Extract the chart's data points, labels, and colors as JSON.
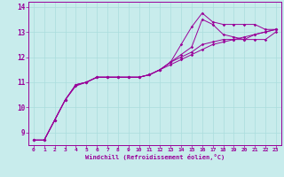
{
  "xlabel": "Windchill (Refroidissement éolien,°C)",
  "bg_color": "#c8ecec",
  "line_color": "#990099",
  "grid_color": "#aadddd",
  "xlim": [
    -0.5,
    23.5
  ],
  "ylim": [
    8.5,
    14.2
  ],
  "xticks": [
    0,
    1,
    2,
    3,
    4,
    5,
    6,
    7,
    8,
    9,
    10,
    11,
    12,
    13,
    14,
    15,
    16,
    17,
    18,
    19,
    20,
    21,
    22,
    23
  ],
  "yticks": [
    9,
    10,
    11,
    12,
    13,
    14
  ],
  "series": [
    {
      "x": [
        0,
        1,
        2,
        3,
        4,
        5,
        6,
        7,
        8,
        9,
        10,
        11,
        12,
        13,
        14,
        15,
        16,
        17,
        18,
        19,
        20,
        21,
        22,
        23
      ],
      "y": [
        8.7,
        8.7,
        9.5,
        10.3,
        10.9,
        11.0,
        11.2,
        11.2,
        11.2,
        11.2,
        11.2,
        11.3,
        11.5,
        11.8,
        12.5,
        13.2,
        13.75,
        13.4,
        13.3,
        13.3,
        13.3,
        13.3,
        13.1,
        13.1
      ]
    },
    {
      "x": [
        0,
        1,
        2,
        3,
        4,
        5,
        6,
        7,
        8,
        9,
        10,
        11,
        12,
        13,
        14,
        15,
        16,
        17,
        18,
        19,
        20,
        21,
        22,
        23
      ],
      "y": [
        8.7,
        8.7,
        9.5,
        10.3,
        10.85,
        11.0,
        11.2,
        11.2,
        11.2,
        11.2,
        11.2,
        11.3,
        11.5,
        11.8,
        12.1,
        12.4,
        13.5,
        13.3,
        12.9,
        12.8,
        12.7,
        12.7,
        12.7,
        13.0
      ]
    },
    {
      "x": [
        0,
        1,
        2,
        3,
        4,
        5,
        6,
        7,
        8,
        9,
        10,
        11,
        12,
        13,
        14,
        15,
        16,
        17,
        18,
        19,
        20,
        21,
        22,
        23
      ],
      "y": [
        8.7,
        8.7,
        9.5,
        10.3,
        10.9,
        11.0,
        11.2,
        11.2,
        11.2,
        11.2,
        11.2,
        11.3,
        11.5,
        11.8,
        12.0,
        12.2,
        12.5,
        12.6,
        12.7,
        12.7,
        12.7,
        12.9,
        13.0,
        13.1
      ]
    },
    {
      "x": [
        0,
        1,
        2,
        3,
        4,
        5,
        6,
        7,
        8,
        9,
        10,
        11,
        12,
        13,
        14,
        15,
        16,
        17,
        18,
        19,
        20,
        21,
        22,
        23
      ],
      "y": [
        8.7,
        8.7,
        9.5,
        10.3,
        10.9,
        11.0,
        11.2,
        11.2,
        11.2,
        11.2,
        11.2,
        11.3,
        11.5,
        11.7,
        11.9,
        12.1,
        12.3,
        12.5,
        12.6,
        12.7,
        12.8,
        12.9,
        13.0,
        13.1
      ]
    }
  ]
}
